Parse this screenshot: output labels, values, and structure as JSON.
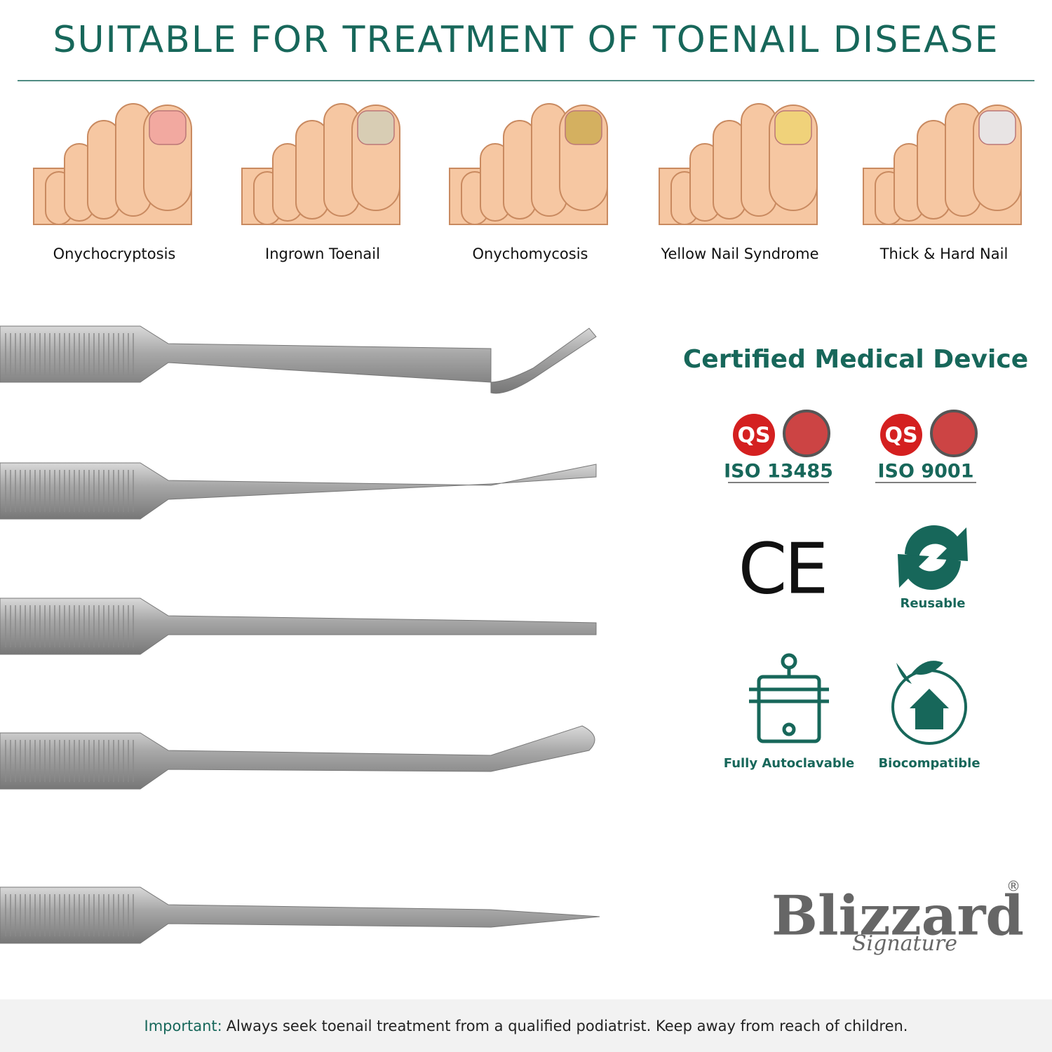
{
  "header": {
    "title": "SUITABLE FOR TREATMENT OF TOENAIL DISEASE"
  },
  "conditions": [
    "Onychocryptosis",
    "Ingrown Toenail",
    "Onychomycosis",
    "Yellow Nail Syndrome",
    "Thick & Hard Nail"
  ],
  "certifications": {
    "heading": "Certified Medical Device",
    "badges": [
      {
        "logo": "QS",
        "label": "ISO 13485"
      },
      {
        "logo": "QS",
        "label": "ISO 9001"
      }
    ],
    "ce": "CE",
    "features": [
      "Reusable",
      "Fully Autoclavable",
      "Biocompatible"
    ]
  },
  "brand": {
    "name": "Blizzard",
    "sub": "Signature",
    "mark": "®"
  },
  "footer": {
    "lead": "Important:",
    "text": "Always seek toenail treatment from a qualified podiatrist. Keep away from reach of children."
  }
}
